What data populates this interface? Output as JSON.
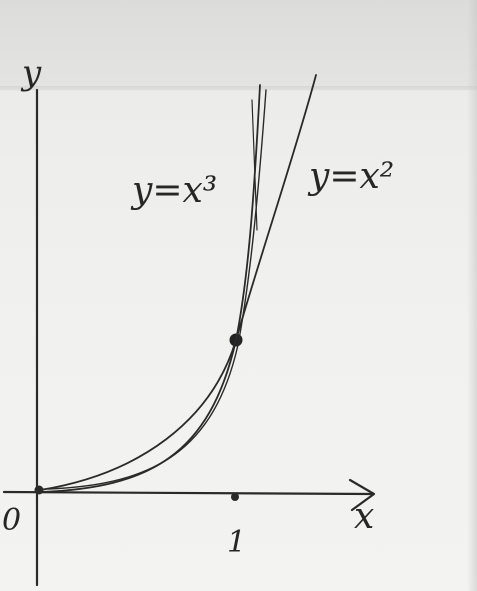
{
  "figure": {
    "axis_x_label": "x",
    "axis_y_label": "y",
    "origin_label": "0",
    "x_tick_label": "1",
    "curve_cubic_label": "y=x³",
    "curve_square_label": "y=x²",
    "colors": {
      "ink": "#2a2a2a",
      "paper": "#f1f1ef"
    }
  },
  "chart_data": {
    "type": "line",
    "xlabel": "x",
    "ylabel": "y",
    "series": [
      {
        "name": "y=x³",
        "function": "x^3"
      },
      {
        "name": "y=x²",
        "function": "x^2"
      }
    ],
    "points": [
      {
        "x": 0,
        "y": 0,
        "label": "0"
      },
      {
        "x": 1,
        "y": 1
      }
    ],
    "x_ticks": [
      1
    ],
    "grid": false
  }
}
